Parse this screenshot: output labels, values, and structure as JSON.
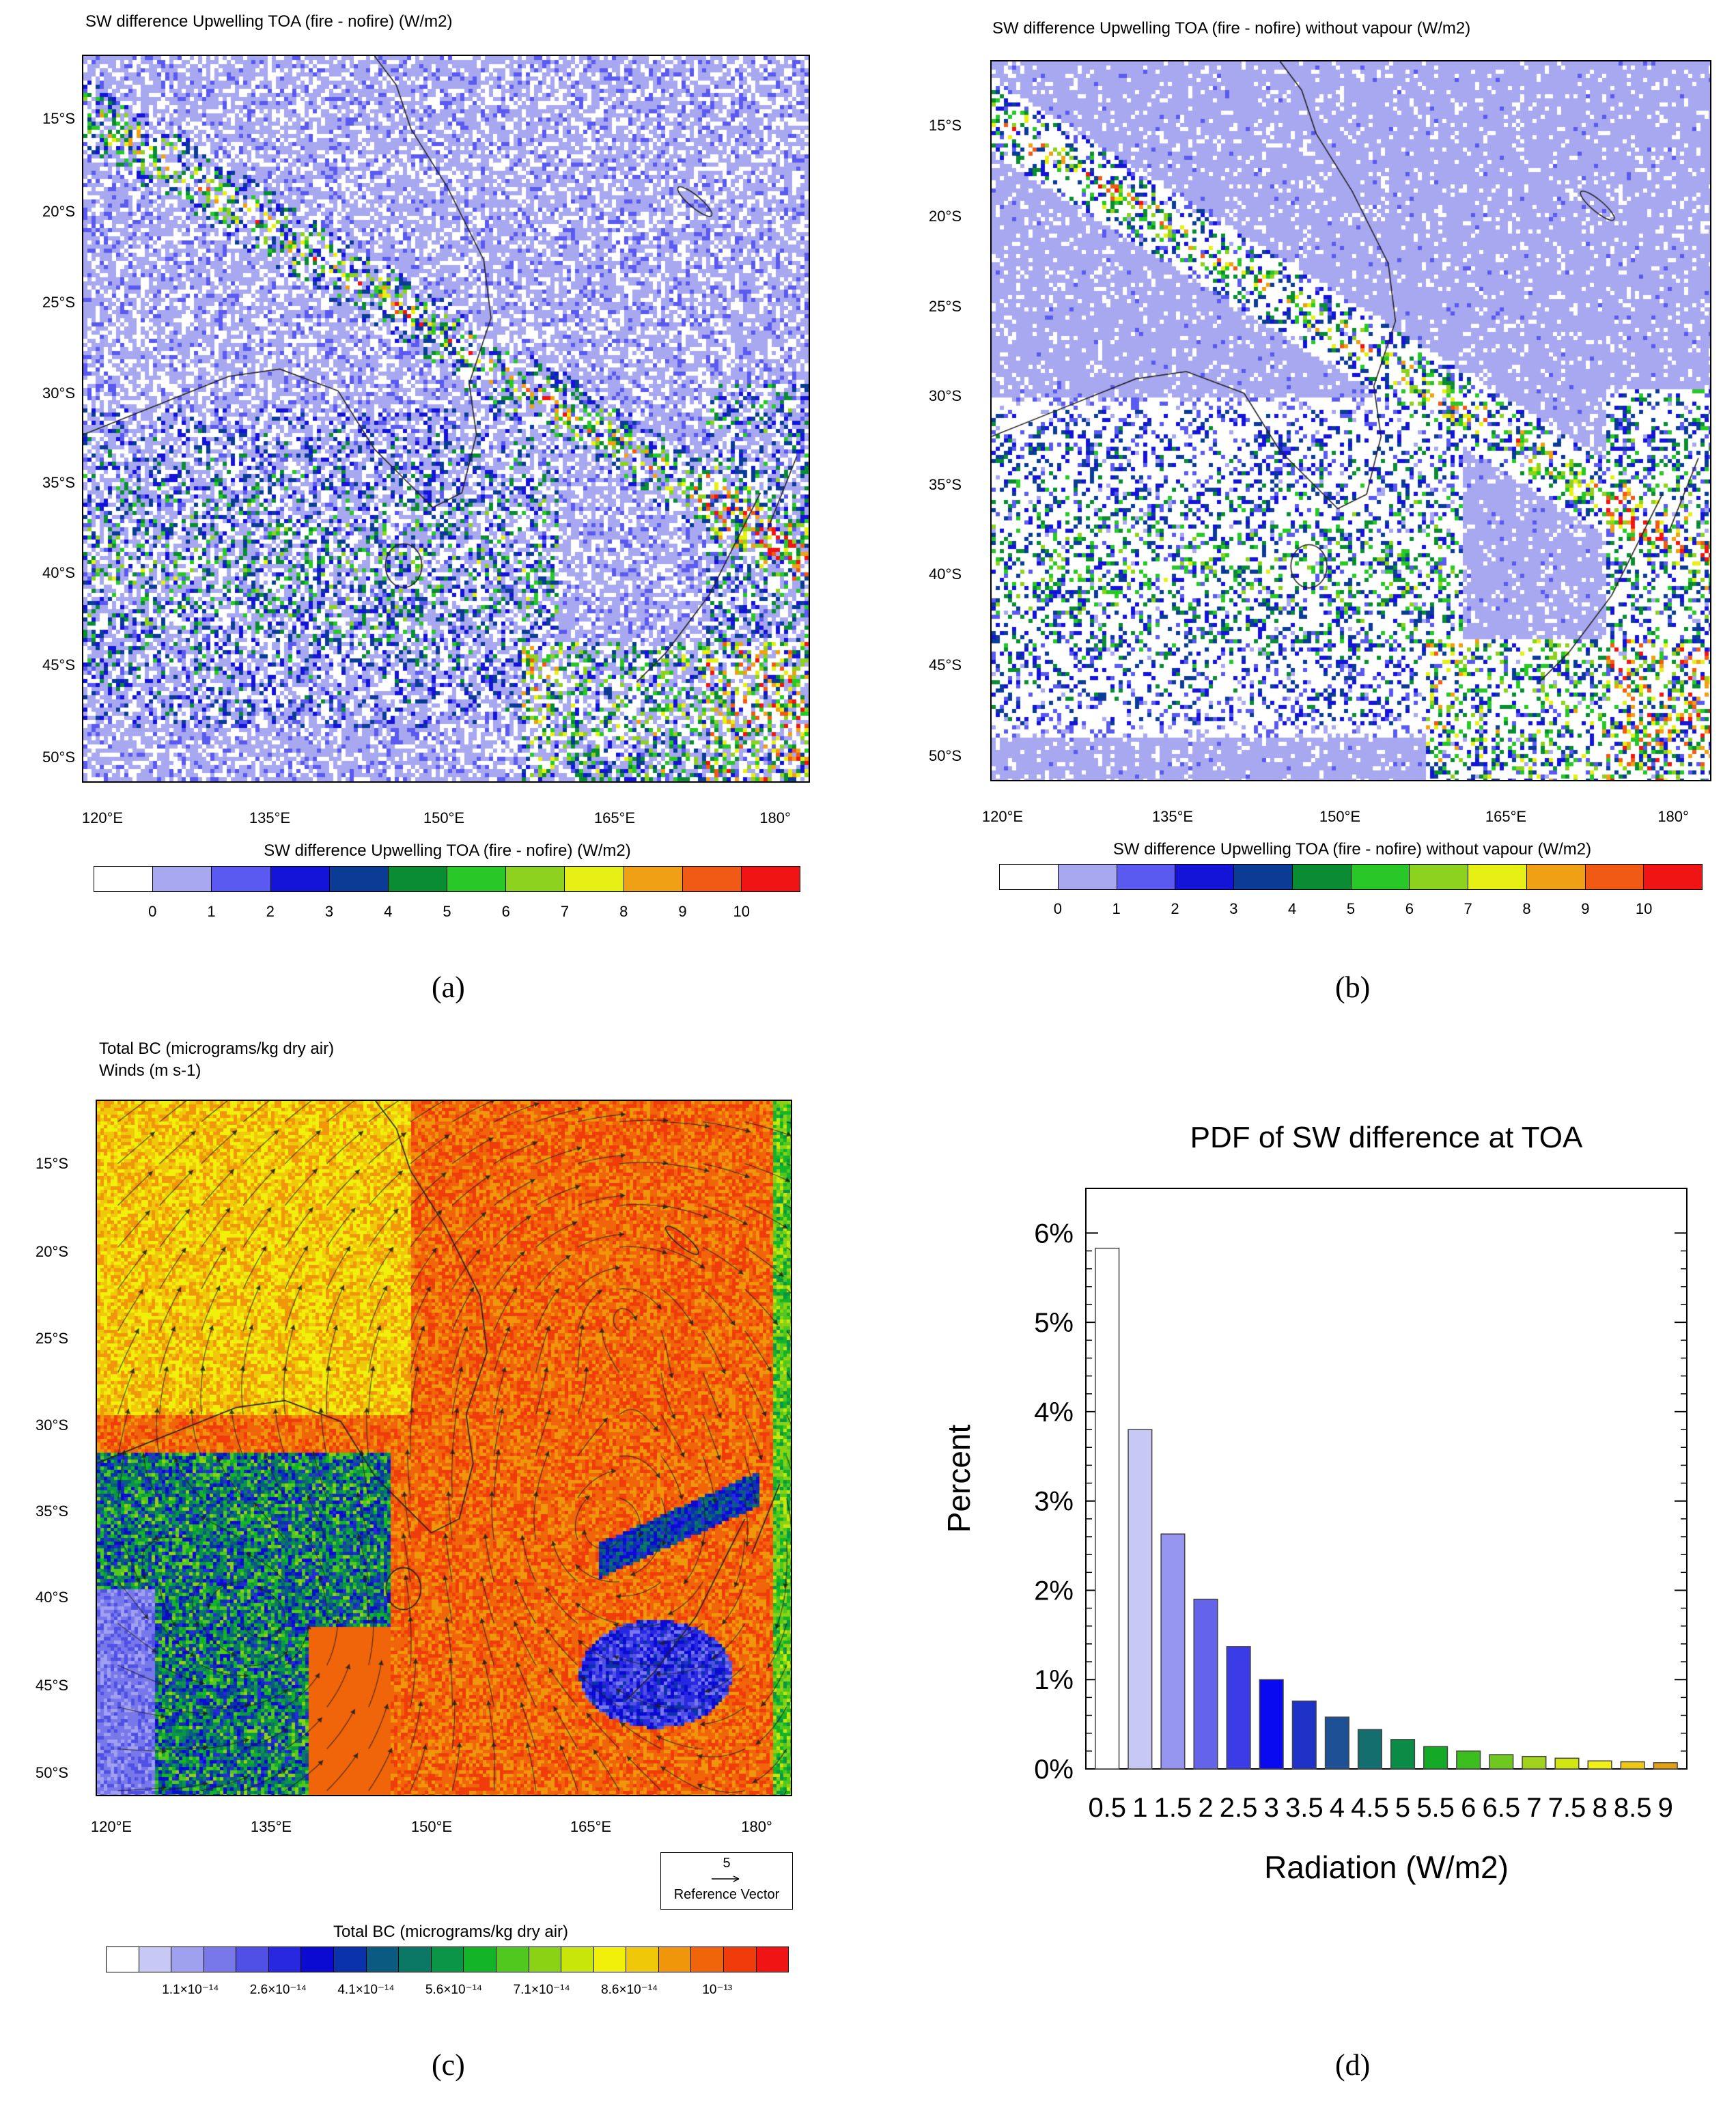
{
  "panel_a": {
    "title": "SW difference Upwelling TOA (fire - nofire)    (W/m2)",
    "lat_labels": [
      "15°S",
      "20°S",
      "25°S",
      "30°S",
      "35°S",
      "40°S",
      "45°S",
      "50°S"
    ],
    "lon_labels": [
      "120°E",
      "135°E",
      "150°E",
      "165°E",
      "180°"
    ],
    "colorbar_title": "SW difference Upwelling TOA (fire - nofire)  (W/m2)",
    "colorbar_labels": [
      "0",
      "1",
      "2",
      "3",
      "4",
      "5",
      "6",
      "7",
      "8",
      "9",
      "10"
    ],
    "colors": [
      "#ffffff",
      "#a8a8f0",
      "#5a5af0",
      "#1414d8",
      "#0a3c96",
      "#0a8c32",
      "#28c828",
      "#8cd21e",
      "#e6f014",
      "#f0a014",
      "#f05a14",
      "#f01414"
    ],
    "caption": "(a)"
  },
  "panel_b": {
    "title": "SW difference Upwelling TOA (fire - nofire) without vapour    (W/m2)",
    "lat_labels": [
      "15°S",
      "20°S",
      "25°S",
      "30°S",
      "35°S",
      "40°S",
      "45°S",
      "50°S"
    ],
    "lon_labels": [
      "120°E",
      "135°E",
      "150°E",
      "165°E",
      "180°"
    ],
    "colorbar_title": "SW difference Upwelling TOA (fire - nofire) without vapour  (W/m2)",
    "colorbar_labels": [
      "0",
      "1",
      "2",
      "3",
      "4",
      "5",
      "6",
      "7",
      "8",
      "9",
      "10"
    ],
    "colors": [
      "#ffffff",
      "#a8a8f0",
      "#5a5af0",
      "#1414d8",
      "#0a3c96",
      "#0a8c32",
      "#28c828",
      "#8cd21e",
      "#e6f014",
      "#f0a014",
      "#f05a14",
      "#f01414"
    ],
    "caption": "(b)"
  },
  "panel_c": {
    "title_line1": "Total BC    (micrograms/kg dry air)",
    "title_line2": "Winds    (m s-1)",
    "lat_labels": [
      "15°S",
      "20°S",
      "25°S",
      "30°S",
      "35°S",
      "40°S",
      "45°S",
      "50°S"
    ],
    "lon_labels": [
      "120°E",
      "135°E",
      "150°E",
      "165°E",
      "180°"
    ],
    "ref_vector_value": "5",
    "ref_vector_label": "Reference Vector",
    "colorbar_title": "Total BC  (micrograms/kg dry air)",
    "colorbar_labels": [
      "1.1×10⁻¹⁴",
      "2.6×10⁻¹⁴",
      "4.1×10⁻¹⁴",
      "5.6×10⁻¹⁴",
      "7.1×10⁻¹⁴",
      "8.6×10⁻¹⁴",
      "10⁻¹³"
    ],
    "colors": [
      "#ffffff",
      "#c8c8f5",
      "#a0a0f0",
      "#7878eb",
      "#5050e6",
      "#2828e1",
      "#0a0ad2",
      "#0a32aa",
      "#0a5a82",
      "#0a7864",
      "#0a9646",
      "#14b428",
      "#50c81e",
      "#8cd214",
      "#c8e60a",
      "#f0f00a",
      "#f0c80a",
      "#f0960a",
      "#f0640a",
      "#f03c0a",
      "#f01414"
    ],
    "caption": "(c)"
  },
  "panel_d": {
    "caption": "(d)",
    "chart_data": {
      "type": "bar",
      "title": "PDF of SW difference at TOA",
      "xlabel": "Radiation (W/m2)",
      "ylabel": "Percent",
      "categories": [
        "0.5",
        "1",
        "1.5",
        "2",
        "2.5",
        "3",
        "3.5",
        "4",
        "4.5",
        "5",
        "5.5",
        "6",
        "6.5",
        "7",
        "7.5",
        "8",
        "8.5",
        "9"
      ],
      "values": [
        5.83,
        3.8,
        2.63,
        1.9,
        1.37,
        1.0,
        0.76,
        0.58,
        0.44,
        0.33,
        0.25,
        0.2,
        0.16,
        0.14,
        0.12,
        0.09,
        0.08,
        0.07
      ],
      "bar_colors": [
        "#ffffff",
        "#c8c8f5",
        "#9696f0",
        "#6464eb",
        "#3c3ce6",
        "#0a0af0",
        "#1e32c8",
        "#1e5096",
        "#146e6e",
        "#0a8c46",
        "#14aa28",
        "#3cbe1e",
        "#6ec81e",
        "#a0d21e",
        "#d2e614",
        "#f0f014",
        "#f0c814",
        "#e6a014"
      ],
      "ylim": [
        0,
        6.5
      ],
      "yticks": [
        "0%",
        "1%",
        "2%",
        "3%",
        "4%",
        "5%",
        "6%"
      ]
    }
  }
}
